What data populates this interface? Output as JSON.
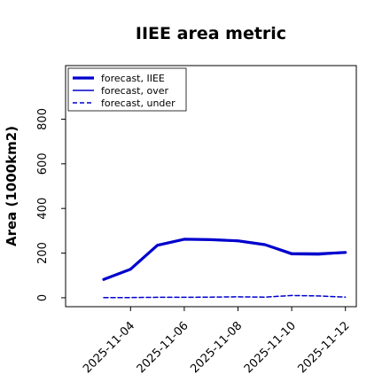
{
  "chart_data": {
    "type": "line",
    "title": "IIEE area metric",
    "xlabel": "",
    "ylabel": "Area (1000km2)",
    "x": [
      "2025-11-03",
      "2025-11-04",
      "2025-11-05",
      "2025-11-06",
      "2025-11-07",
      "2025-11-08",
      "2025-11-09",
      "2025-11-10",
      "2025-11-11",
      "2025-11-12"
    ],
    "xticks": [
      "2025-11-04",
      "2025-11-06",
      "2025-11-08",
      "2025-11-10",
      "2025-11-12"
    ],
    "highlighted_tick": "2025-11-04",
    "highlight_color": "#228B22",
    "ylim": [
      -40,
      1040
    ],
    "yticks": [
      "0",
      "200",
      "400",
      "600",
      "800"
    ],
    "grid": false,
    "legend_position": "top-left",
    "series": [
      {
        "name": "forecast, IIEE",
        "style": "thick-solid",
        "color": "#0000cd",
        "values": [
          82,
          128,
          235,
          262,
          260,
          255,
          238,
          198,
          197,
          203
        ]
      },
      {
        "name": "forecast, over",
        "style": "solid",
        "color": "#0000cd",
        "values": [
          80,
          126,
          232,
          260,
          258,
          252,
          235,
          193,
          192,
          201
        ]
      },
      {
        "name": "forecast, under",
        "style": "dashed",
        "color": "#0000cd",
        "values": [
          1,
          1,
          2,
          2,
          3,
          4,
          3,
          10,
          8,
          3
        ]
      }
    ]
  }
}
